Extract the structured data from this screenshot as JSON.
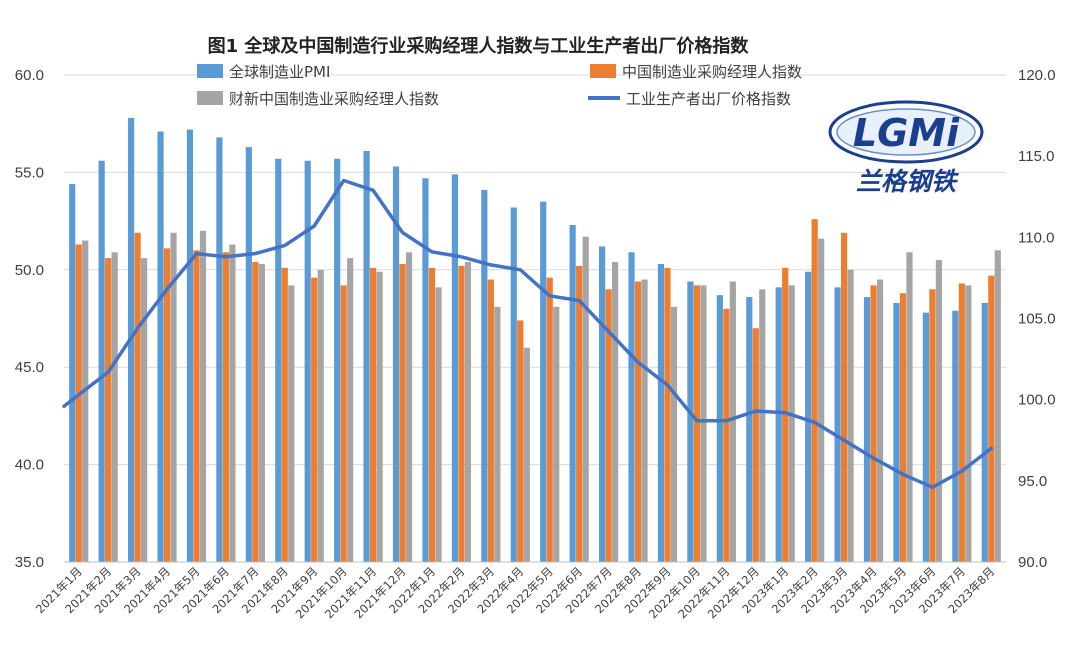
{
  "chart_data": {
    "type": "bar",
    "title": "图1 全球及中国制造行业采购经理人指数与工业生产者出厂价格指数",
    "categories": [
      "2021年1月",
      "2021年2月",
      "2021年3月",
      "2021年4月",
      "2021年5月",
      "2021年6月",
      "2021年7月",
      "2021年8月",
      "2021年9月",
      "2021年10月",
      "2021年11月",
      "2021年12月",
      "2022年1月",
      "2022年2月",
      "2022年3月",
      "2022年4月",
      "2022年5月",
      "2022年6月",
      "2022年7月",
      "2022年8月",
      "2022年9月",
      "2022年10月",
      "2022年11月",
      "2022年12月",
      "2023年1月",
      "2023年2月",
      "2023年3月",
      "2023年4月",
      "2023年5月",
      "2023年6月",
      "2023年7月",
      "2023年8月"
    ],
    "y_left_ticks": [
      "35.0",
      "40.0",
      "45.0",
      "50.0",
      "55.0",
      "60.0"
    ],
    "y_right_ticks": [
      "90.0",
      "95.0",
      "100.0",
      "105.0",
      "110.0",
      "115.0",
      "120.0"
    ],
    "ylim_left": [
      35,
      60
    ],
    "ylim_right": [
      90,
      120
    ],
    "legend_position": "top",
    "grid": "horizontal",
    "series": [
      {
        "name": "全球制造业PMI",
        "kind": "bar",
        "axis": "left",
        "color": "#5B9BD5",
        "values": [
          54.4,
          55.6,
          57.8,
          57.1,
          57.2,
          56.8,
          56.3,
          55.7,
          55.6,
          55.7,
          56.1,
          55.3,
          54.7,
          54.9,
          54.1,
          53.2,
          53.5,
          52.3,
          51.2,
          50.9,
          50.3,
          49.4,
          48.7,
          48.6,
          49.1,
          49.9,
          49.1,
          48.6,
          48.3,
          47.8,
          47.9,
          48.3
        ]
      },
      {
        "name": "中国制造业采购经理人指数",
        "kind": "bar",
        "axis": "left",
        "color": "#ED7D31",
        "values": [
          51.3,
          50.6,
          51.9,
          51.1,
          51.0,
          50.9,
          50.4,
          50.1,
          49.6,
          49.2,
          50.1,
          50.3,
          50.1,
          50.2,
          49.5,
          47.4,
          49.6,
          50.2,
          49.0,
          49.4,
          50.1,
          49.2,
          48.0,
          47.0,
          50.1,
          52.6,
          51.9,
          49.2,
          48.8,
          49.0,
          49.3,
          49.7
        ]
      },
      {
        "name": "财新中国制造业采购经理人指数",
        "kind": "bar",
        "axis": "left",
        "color": "#A5A5A5",
        "values": [
          51.5,
          50.9,
          50.6,
          51.9,
          52.0,
          51.3,
          50.3,
          49.2,
          50.0,
          50.6,
          49.9,
          50.9,
          49.1,
          50.4,
          48.1,
          46.0,
          48.1,
          51.7,
          50.4,
          49.5,
          48.1,
          49.2,
          49.4,
          49.0,
          49.2,
          51.6,
          50.0,
          49.5,
          50.9,
          50.5,
          49.2,
          51.0
        ]
      },
      {
        "name": "工业生产者出厂价格指数",
        "kind": "line",
        "axis": "right",
        "color": "#4472C4",
        "values": [
          100.3,
          101.7,
          104.4,
          106.8,
          109.0,
          108.8,
          109.0,
          109.5,
          110.7,
          113.5,
          112.9,
          110.3,
          109.1,
          108.8,
          108.3,
          108.0,
          106.4,
          106.1,
          104.2,
          102.3,
          100.9,
          98.7,
          98.7,
          99.3,
          99.2,
          98.6,
          97.5,
          96.4,
          95.4,
          94.6,
          95.6,
          97.0
        ]
      }
    ]
  },
  "logo": {
    "text": "LGMi",
    "subtext": "兰格钢铁",
    "color": "#1B3F8F"
  }
}
